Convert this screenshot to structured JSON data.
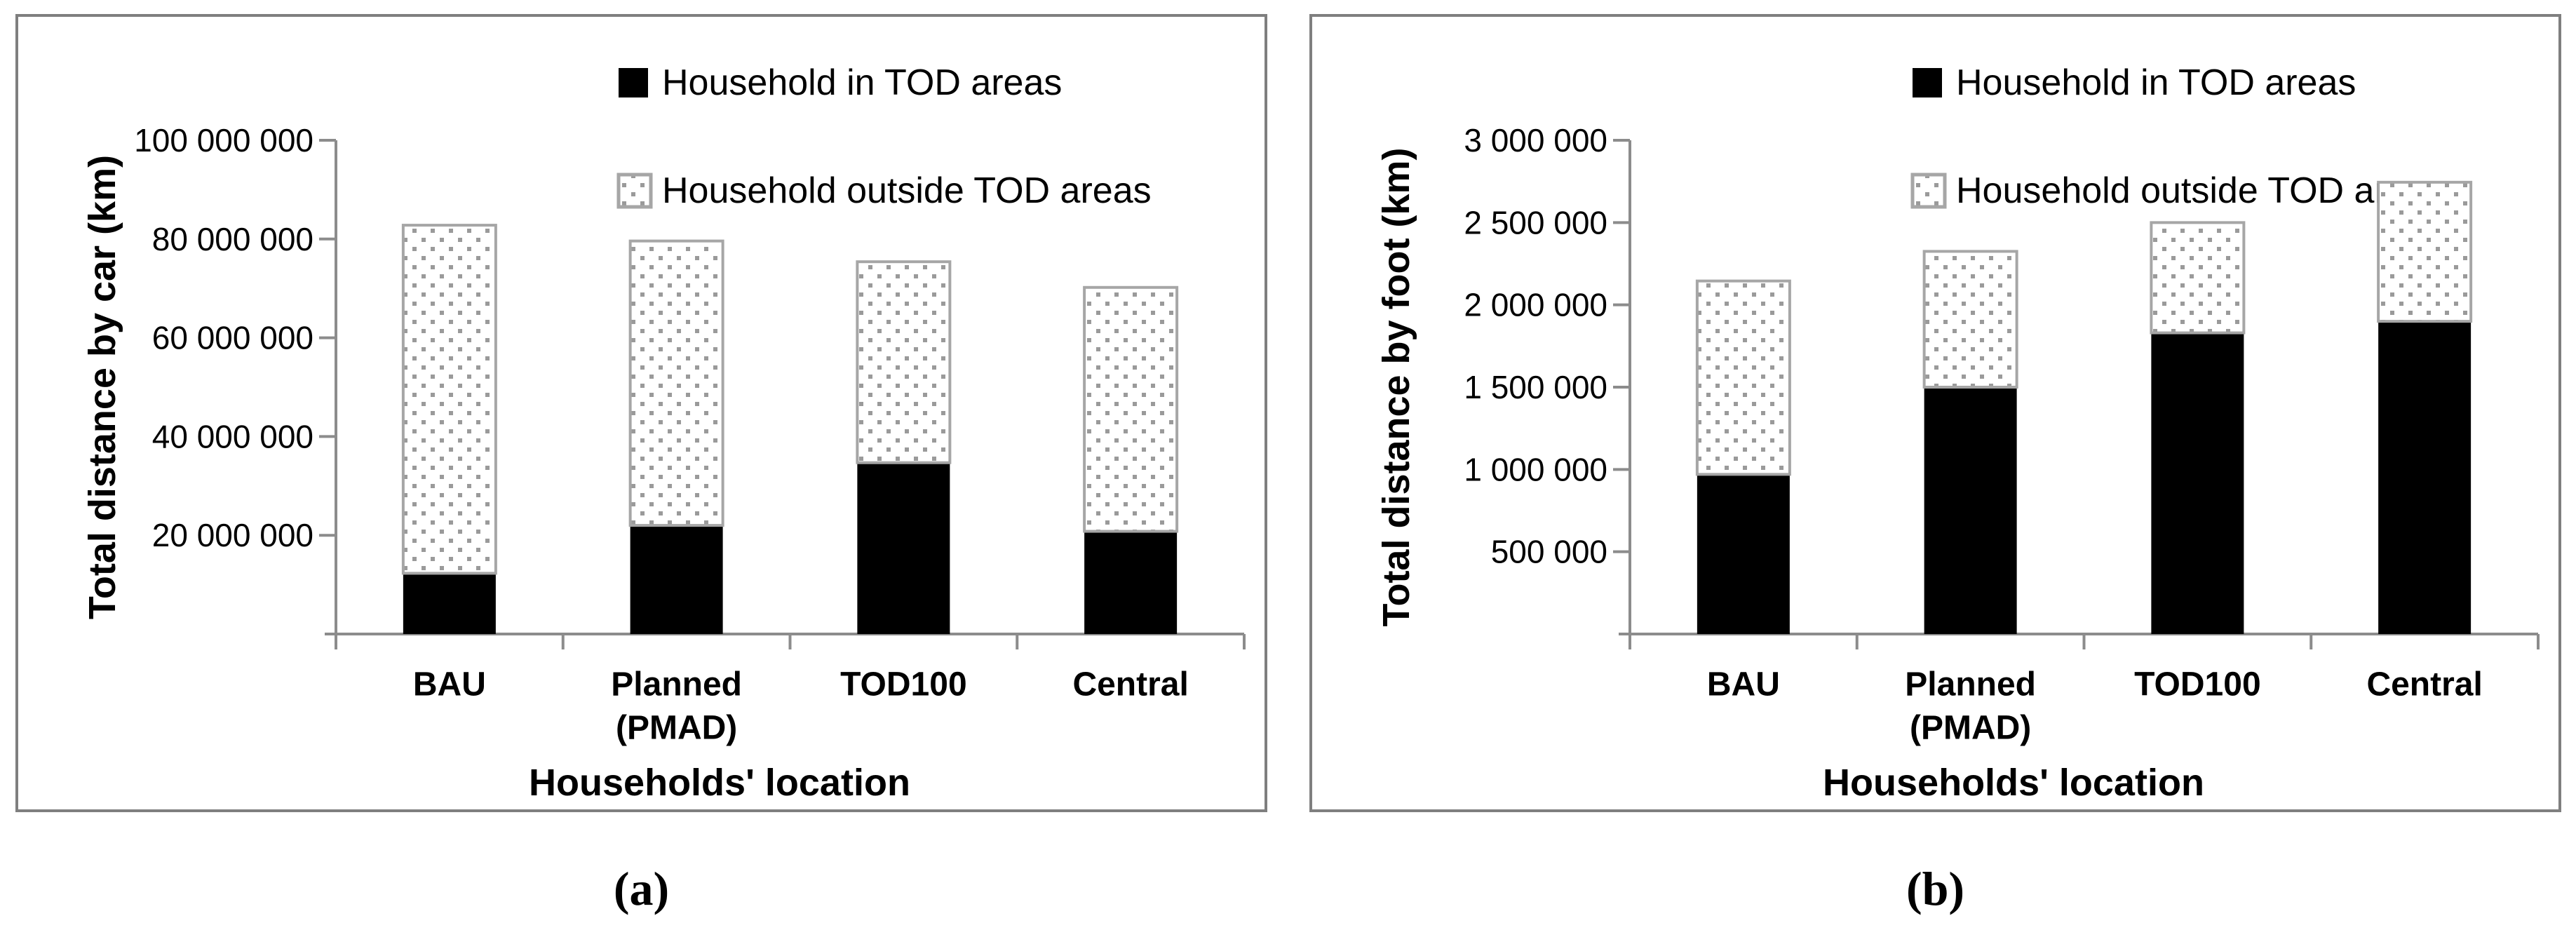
{
  "styles": {
    "bar_fill": "#000000",
    "bar_outline": "#a6a6a6",
    "dot_color": "#9a9a9a",
    "axis_color": "#8c8c8c",
    "panel_border": "#7f7f7f",
    "text_color": "#000000"
  },
  "chart_data": [
    {
      "type": "bar",
      "stacked": true,
      "caption": "(a)",
      "title": "",
      "xlabel": "Households' location",
      "ylabel": "Total distance by car (km)",
      "categories": [
        "BAU",
        "Planned (PMAD)",
        "TOD100",
        "Central"
      ],
      "category_lines": [
        [
          "BAU"
        ],
        [
          "Planned",
          "(PMAD)"
        ],
        [
          "TOD100"
        ],
        [
          "Central"
        ]
      ],
      "ylim": [
        0,
        100000000
      ],
      "ytick_step": 20000000,
      "ytick_labels": [
        "100 000 000",
        "80 000 000",
        "60 000 000",
        "40 000 000",
        "20 000 000"
      ],
      "grid": false,
      "legend_position": "top-center",
      "series": [
        {
          "name": "Household in TOD areas",
          "fill": "solid-black",
          "values": [
            12300000,
            22000000,
            34700000,
            20800000
          ]
        },
        {
          "name": "Household outside TOD areas",
          "fill": "dotted-white",
          "values": [
            70500000,
            57600000,
            40700000,
            49400000
          ]
        }
      ]
    },
    {
      "type": "bar",
      "stacked": true,
      "caption": "(b)",
      "title": "",
      "xlabel": "Households' location",
      "ylabel": "Total distance by foot (km)",
      "categories": [
        "BAU",
        "Planned (PMAD)",
        "TOD100",
        "Central"
      ],
      "category_lines": [
        [
          "BAU"
        ],
        [
          "Planned",
          "(PMAD)"
        ],
        [
          "TOD100"
        ],
        [
          "Central"
        ]
      ],
      "ylim": [
        0,
        3000000
      ],
      "ytick_step": 500000,
      "ytick_labels": [
        "3 000 000",
        "2 500 000",
        "2 000 000",
        "1 500 000",
        "1 000 000",
        "500 000"
      ],
      "grid": false,
      "legend_position": "top-center",
      "series": [
        {
          "name": "Household in TOD areas",
          "fill": "solid-black",
          "values": [
            970000,
            1500000,
            1830000,
            1900000
          ]
        },
        {
          "name": "Household outside TOD areas",
          "fill": "dotted-white",
          "values": [
            1175000,
            825000,
            670000,
            845000
          ]
        }
      ]
    }
  ]
}
